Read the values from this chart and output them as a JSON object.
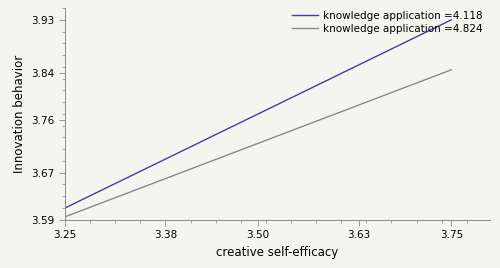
{
  "x_ticks": [
    3.25,
    3.38,
    3.5,
    3.63,
    3.75
  ],
  "y_ticks": [
    3.59,
    3.67,
    3.76,
    3.84,
    3.93
  ],
  "ylim": [
    3.59,
    3.95
  ],
  "xlim": [
    3.25,
    3.8
  ],
  "line1": {
    "x": [
      3.25,
      3.75
    ],
    "y": [
      3.61,
      3.93
    ],
    "color": "#4040a0",
    "linewidth": 1.0,
    "label": "knowledge application =4.118"
  },
  "line2": {
    "x": [
      3.25,
      3.75
    ],
    "y": [
      3.595,
      3.845
    ],
    "color": "#888888",
    "linewidth": 1.0,
    "label": "knowledge application =4.824"
  },
  "xlabel": "creative self-efficacy",
  "ylabel": "Innovation behavior",
  "xlabel_fontsize": 8.5,
  "ylabel_fontsize": 8.5,
  "tick_fontsize": 7.5,
  "legend_fontsize": 7.5,
  "background_color": "#f5f5f0",
  "spine_color": "#888888"
}
